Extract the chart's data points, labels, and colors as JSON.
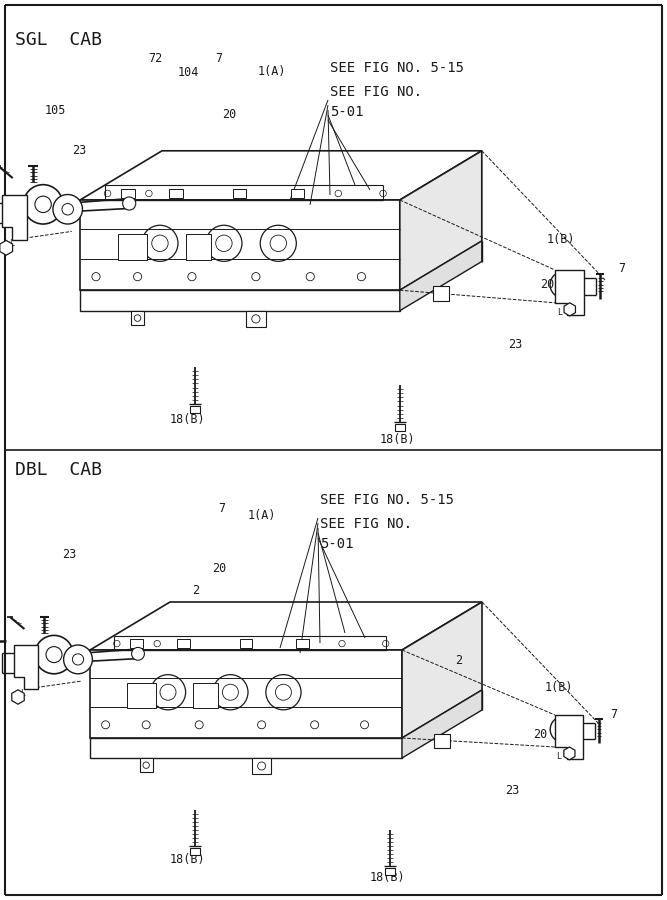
{
  "bg_color": "#ffffff",
  "line_color": "#1a1a1a",
  "sgl_label": "SGL  CAB",
  "dbl_label": "DBL  CAB",
  "see_fig_15": "SEE FIG NO. 5-15",
  "see_fig_01a": "SEE FIG NO.",
  "see_fig_01b": "5-01"
}
